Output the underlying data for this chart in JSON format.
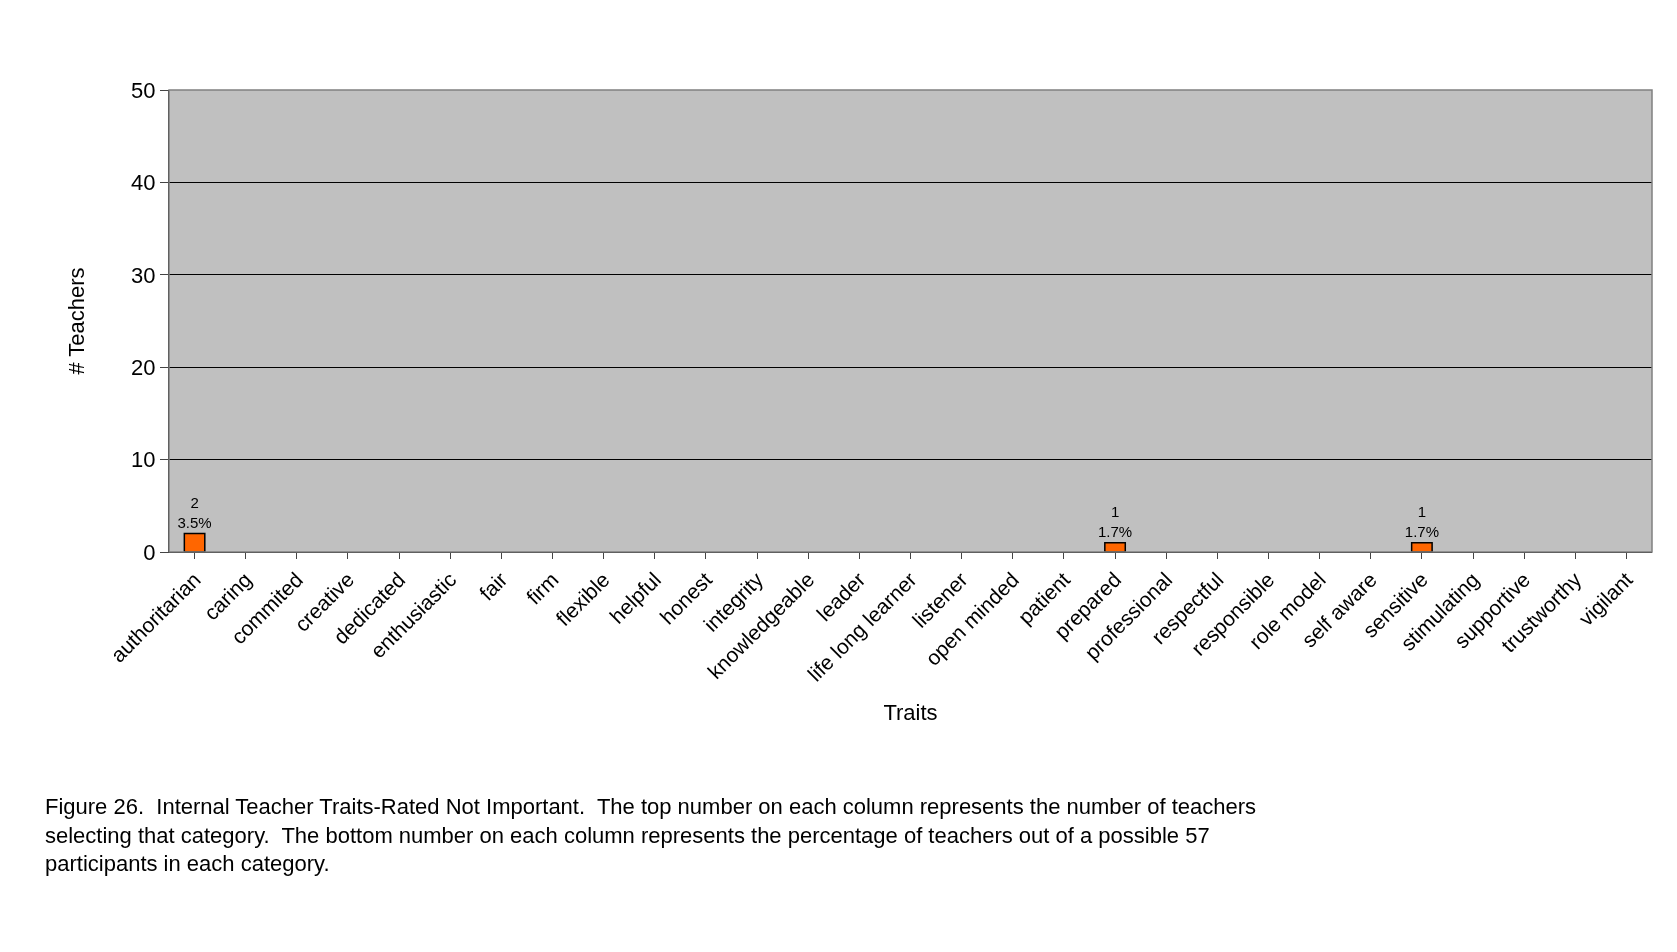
{
  "chart_data": {
    "type": "bar",
    "xlabel": "Traits",
    "ylabel": "# Teachers",
    "categories": [
      "authoritarian",
      "caring",
      "commited",
      "creative",
      "dedicated",
      "enthusiastic",
      "fair",
      "firm",
      "flexible",
      "helpful",
      "honest",
      "integrity",
      "knowledgeable",
      "leader",
      "life long learner",
      "listener",
      "open minded",
      "patient",
      "prepared",
      "professional",
      "respectful",
      "responsible",
      "role model",
      "self aware",
      "sensitive",
      "stimulating",
      "supportive",
      "trustworthy",
      "vigilant"
    ],
    "values": [
      2,
      0,
      0,
      0,
      0,
      0,
      0,
      0,
      0,
      0,
      0,
      0,
      0,
      0,
      0,
      0,
      0,
      0,
      1,
      0,
      0,
      0,
      0,
      0,
      1,
      0,
      0,
      0,
      0
    ],
    "value_labels": [
      "2\n3.5%",
      null,
      null,
      null,
      null,
      null,
      null,
      null,
      null,
      null,
      null,
      null,
      null,
      null,
      null,
      null,
      null,
      null,
      "1\n1.7%",
      null,
      null,
      null,
      null,
      null,
      "1\n1.7%",
      null,
      null,
      null,
      null
    ],
    "color": "#ff6600",
    "ylim": [
      0,
      50
    ],
    "yticks": [
      0,
      10,
      20,
      30,
      40,
      50
    ],
    "grid": "y",
    "annotations": [
      "Figure 26.  Internal Teacher Traits-Rated Not Important.  The top number on each column represents the number of teachers selecting that category.  The bottom number on each column represents the percentage of teachers out of a possible 57 participants in each category."
    ]
  }
}
